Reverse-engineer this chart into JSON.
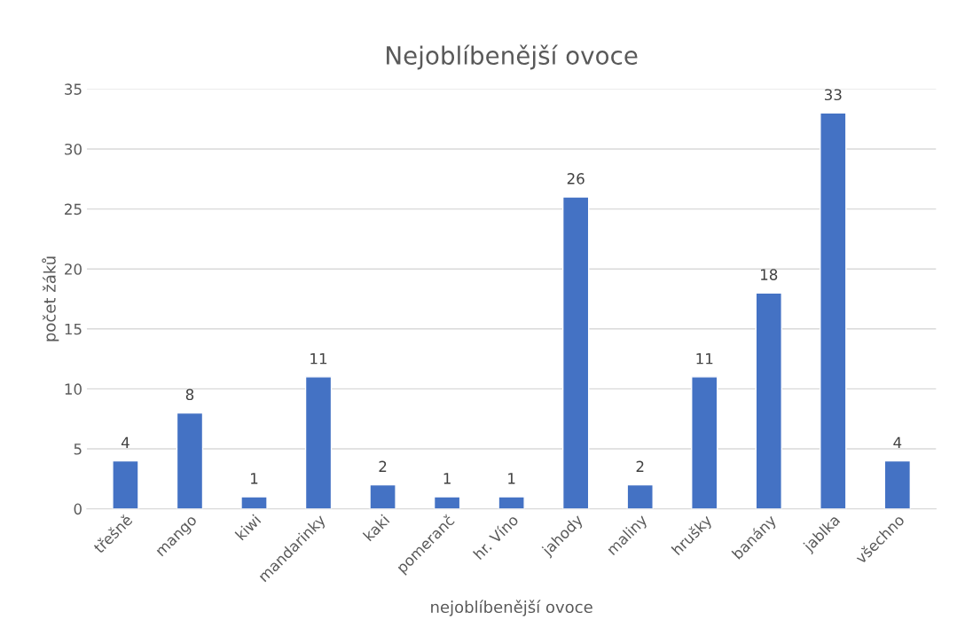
{
  "chart_data": {
    "type": "bar",
    "title": "Nejoblíbenější ovoce",
    "xlabel": "nejoblíbenější ovoce",
    "ylabel": "počet žáků",
    "categories": [
      "třešně",
      "mango",
      "kiwi",
      "mandarinky",
      "kaki",
      "pomeranč",
      "hr. Víno",
      "jahody",
      "maliny",
      "hrušky",
      "banány",
      "jablka",
      "všechno"
    ],
    "values": [
      4,
      8,
      1,
      11,
      2,
      1,
      1,
      26,
      2,
      11,
      18,
      33,
      4
    ],
    "color": "#4472c4",
    "ylim": [
      0,
      35
    ],
    "yticks": [
      0,
      5,
      10,
      15,
      20,
      25,
      30,
      35
    ],
    "grid": "y",
    "data_labels": true
  }
}
